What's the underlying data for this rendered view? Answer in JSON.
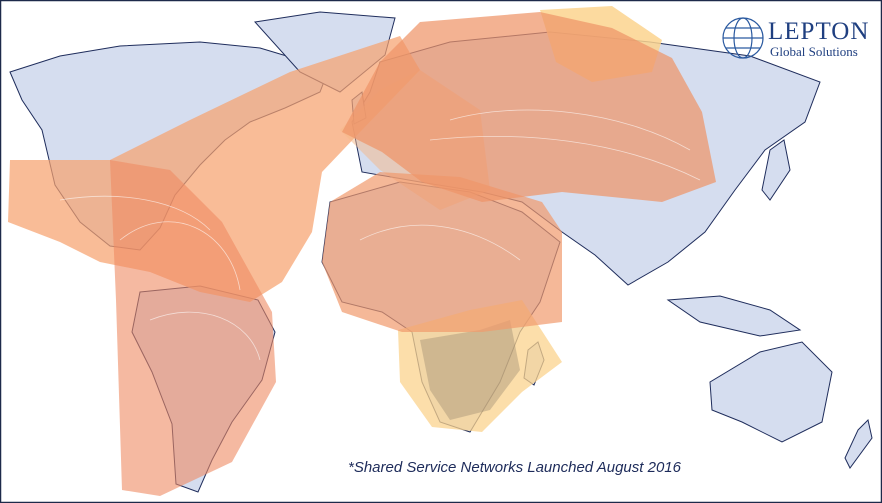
{
  "logo": {
    "name": "LEPTON",
    "tagline": "Global Solutions"
  },
  "caption": "*Shared Service Networks Launched August 2016"
}
